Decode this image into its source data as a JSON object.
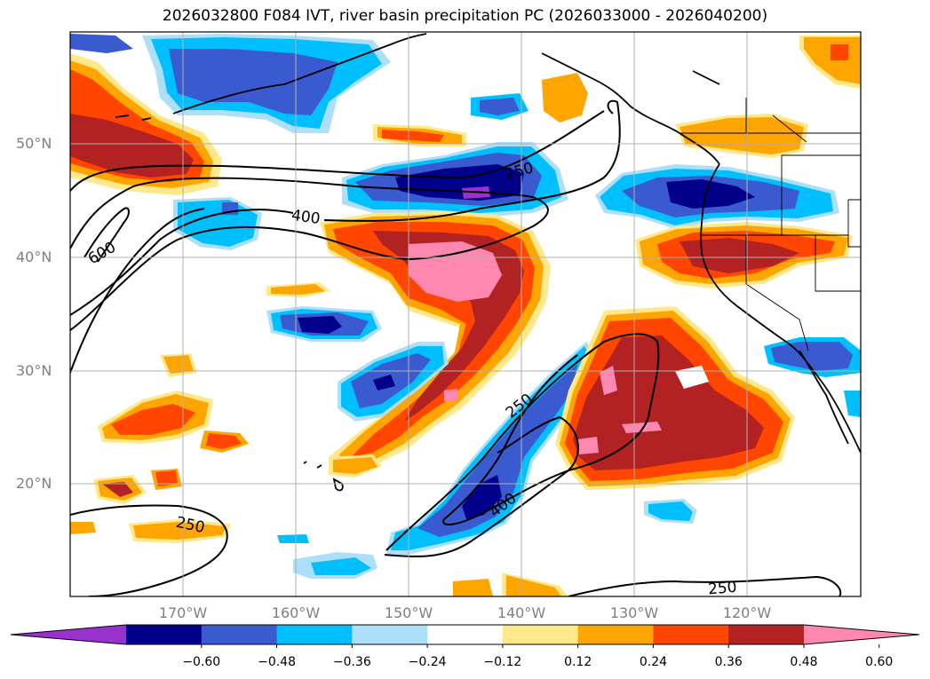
{
  "title": "2026032800 F084 IVT, river basin precipitation PC (2026033000 - 2026040200)",
  "lat_labels": [
    "50°N",
    "40°N",
    "30°N",
    "20°N"
  ],
  "lon_labels": [
    "170°W",
    "160°W",
    "150°W",
    "140°W",
    "130°W",
    "120°W"
  ],
  "contour_labels": {
    "c250_north": "250",
    "c400_north": "400",
    "c600": "600",
    "c250_mid": "250",
    "c400_mid": "400",
    "c250_sw": "250",
    "c250_se": "250"
  },
  "colorbar": {
    "ticks": [
      "−0.60",
      "−0.48",
      "−0.36",
      "−0.24",
      "−0.12",
      "0.12",
      "0.24",
      "0.36",
      "0.48",
      "0.60"
    ],
    "colors": [
      "#9932CC",
      "#00008B",
      "#3A5BD0",
      "#00BFFF",
      "#ADE0F8",
      "#FFFFFF",
      "#FFE88A",
      "#FFA500",
      "#FF4500",
      "#B22222",
      "#FF88B0"
    ]
  }
}
